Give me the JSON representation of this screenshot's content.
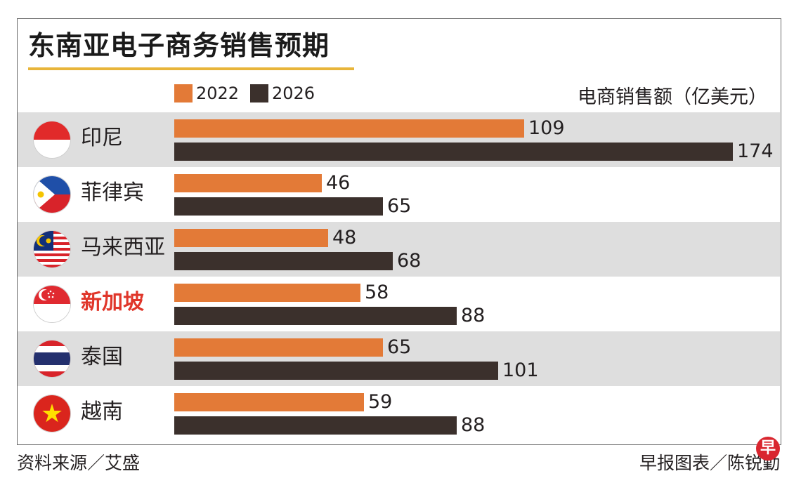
{
  "title": "东南亚电子商务销售预期",
  "unit_label": "电商销售额（亿美元）",
  "colors": {
    "s2022": "#e37a37",
    "s2026": "#3b302c",
    "highlight": "#e0362a",
    "row_shade": "#dedede",
    "title_rule": "#e8b53a"
  },
  "chart_data": {
    "type": "bar",
    "orientation": "horizontal",
    "title": "东南亚电子商务销售预期",
    "xlabel": "电商销售额（亿美元）",
    "categories": [
      "印尼",
      "菲律宾",
      "马来西亚",
      "新加坡",
      "泰国",
      "越南"
    ],
    "highlight_category": "新加坡",
    "series": [
      {
        "name": "2022",
        "color": "#e37a37",
        "values": [
          109,
          46,
          48,
          58,
          65,
          59
        ]
      },
      {
        "name": "2026",
        "color": "#3b302c",
        "values": [
          174,
          65,
          68,
          88,
          101,
          88
        ]
      }
    ],
    "xlim": [
      0,
      174
    ],
    "legend": "top-left",
    "grid": false
  },
  "footer": {
    "source": "资料来源／艾盛",
    "credit": "早报图表／陈锐勤",
    "logo_char": "早"
  }
}
